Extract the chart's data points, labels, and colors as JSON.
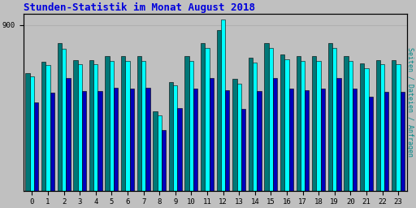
{
  "title": "Stunden-Statistik im Monat August 2018",
  "title_color": "#0000dd",
  "title_fontsize": 9,
  "background_color": "#c0c0c0",
  "plot_bg_color": "#c0c0c0",
  "ylabel_right": "Seiten / Dateien / Anfragen",
  "ylabel_right_color": "#008888",
  "xticklabels": [
    "0",
    "1",
    "2",
    "3",
    "4",
    "5",
    "6",
    "7",
    "8",
    "9",
    "10",
    "11",
    "12",
    "13",
    "14",
    "15",
    "16",
    "17",
    "18",
    "19",
    "20",
    "21",
    "22",
    "23"
  ],
  "ytick_label": "900",
  "bar_width": 0.27,
  "colors": {
    "dateien": "#007777",
    "seiten": "#00ffff",
    "anfragen": "#0000bb"
  },
  "values_dateien": [
    640,
    700,
    800,
    710,
    710,
    730,
    730,
    730,
    430,
    590,
    730,
    800,
    870,
    605,
    720,
    800,
    740,
    730,
    730,
    800,
    730,
    690,
    710,
    710
  ],
  "values_seiten": [
    620,
    680,
    770,
    685,
    685,
    705,
    705,
    705,
    410,
    570,
    705,
    775,
    930,
    580,
    695,
    775,
    715,
    705,
    705,
    775,
    705,
    665,
    685,
    685
  ],
  "values_anfragen": [
    480,
    530,
    610,
    540,
    540,
    560,
    555,
    560,
    330,
    450,
    555,
    610,
    545,
    445,
    540,
    610,
    555,
    545,
    555,
    610,
    555,
    510,
    535,
    535
  ],
  "ylim": [
    0,
    960
  ],
  "yticks": [
    900
  ],
  "grid_color": "#b0b0b0",
  "border_color": "#000000",
  "figsize": [
    5.12,
    2.56
  ],
  "dpi": 100
}
